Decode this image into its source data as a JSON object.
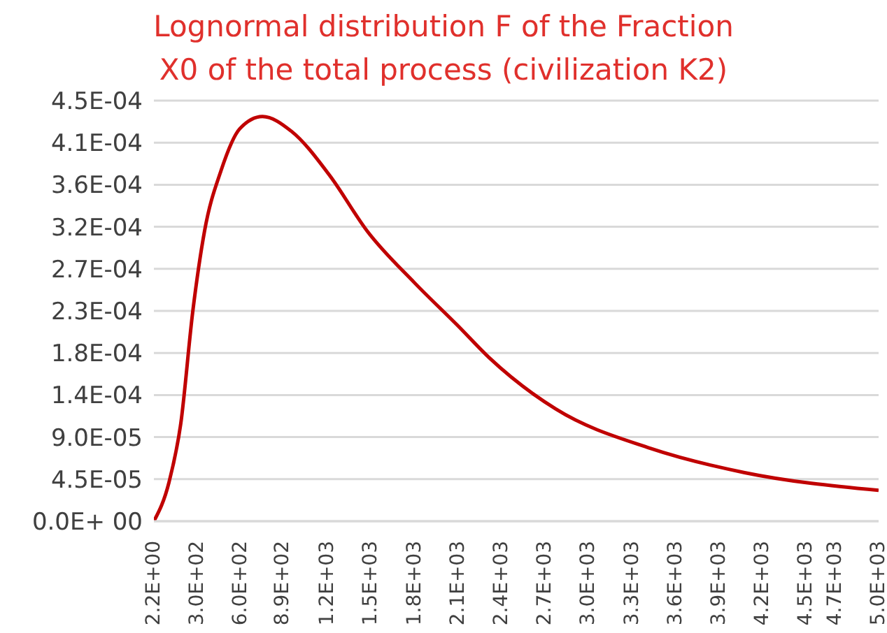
{
  "chart_data": {
    "type": "line",
    "title": "Lognormal distribution F of the Fraction\nX0 of the total process (civilization K2)",
    "x": [
      2.2,
      107,
      188,
      270,
      351,
      465,
      595,
      751,
      952,
      1214,
      1475,
      1800,
      2093,
      2314,
      2774,
      3425,
      4076,
      5000
    ],
    "series": [
      {
        "color": "#c00000",
        "values": [
          0,
          4.2e-05,
          0.000105,
          0.000224,
          0.00031,
          0.000375,
          0.00042,
          0.000433,
          0.000417,
          0.00037,
          0.00031,
          0.000255,
          0.00021,
          0.000175,
          0.00012,
          7.8e-05,
          5.2e-05,
          3.3e-05
        ]
      }
    ],
    "xlim": [
      2.2,
      5000
    ],
    "xticks": [
      {
        "value": 2.2,
        "label": "2.2E+00"
      },
      {
        "value": 300,
        "label": "3.0E+02"
      },
      {
        "value": 600,
        "label": "6.0E+02"
      },
      {
        "value": 890,
        "label": "8.9E+02"
      },
      {
        "value": 1200,
        "label": "1.2E+03"
      },
      {
        "value": 1500,
        "label": "1.5E+03"
      },
      {
        "value": 1800,
        "label": "1.8E+03"
      },
      {
        "value": 2100,
        "label": "2.1E+03"
      },
      {
        "value": 2400,
        "label": "2.4E+03"
      },
      {
        "value": 2700,
        "label": "2.7E+03"
      },
      {
        "value": 3000,
        "label": "3.0E+03"
      },
      {
        "value": 3300,
        "label": "3.3E+03"
      },
      {
        "value": 3600,
        "label": "3.6E+03"
      },
      {
        "value": 3900,
        "label": "3.9E+03"
      },
      {
        "value": 4200,
        "label": "4.2E+03"
      },
      {
        "value": 4500,
        "label": "4.5E+03"
      },
      {
        "value": 4700,
        "label": "4.7E+03"
      },
      {
        "value": 5000,
        "label": "5.0E+03"
      }
    ],
    "ylim": [
      0,
      0.00045
    ],
    "yticks": [
      {
        "value": 0,
        "label": "0.0E+ 00"
      },
      {
        "value": 4.5e-05,
        "label": "4.5E-05"
      },
      {
        "value": 9e-05,
        "label": "9.0E-05"
      },
      {
        "value": 0.000135,
        "label": "1.4E-04"
      },
      {
        "value": 0.00018,
        "label": "1.8E-04"
      },
      {
        "value": 0.000225,
        "label": "2.3E-04"
      },
      {
        "value": 0.00027,
        "label": "2.7E-04"
      },
      {
        "value": 0.000315,
        "label": "3.2E-04"
      },
      {
        "value": 0.00036,
        "label": "3.6E-04"
      },
      {
        "value": 0.000405,
        "label": "4.1E-04"
      },
      {
        "value": 0.00045,
        "label": "4.5E-04"
      }
    ],
    "grid": "y",
    "marker": "none",
    "line_style": "solid"
  }
}
